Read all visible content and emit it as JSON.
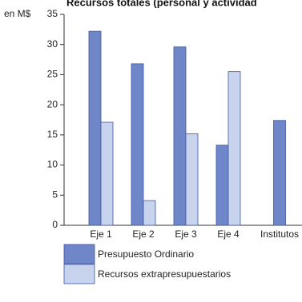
{
  "chart_data": {
    "type": "bar",
    "title": "Recursos totales (personal y actividad",
    "ylabel": "en M$",
    "xlabel": "",
    "ylim": [
      0,
      35
    ],
    "yticks": [
      0,
      5,
      10,
      15,
      20,
      25,
      30,
      35
    ],
    "categories": [
      "Eje 1",
      "Eje 2",
      "Eje 3",
      "Eje 4",
      "Institutos"
    ],
    "series": [
      {
        "name": "Presupuesto Ordinario",
        "color": "#6f87c8",
        "values": [
          32.2,
          26.8,
          29.6,
          13.3,
          17.4
        ]
      },
      {
        "name": "Recursos extrapresupuestarios",
        "color": "#c8d3ee",
        "values": [
          17.1,
          4.1,
          15.2,
          25.5,
          null
        ]
      }
    ],
    "grid": false,
    "legend": "bottom"
  }
}
